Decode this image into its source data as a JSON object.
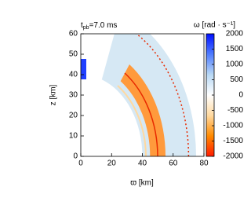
{
  "chart_data": {
    "type": "heatmap",
    "title": {
      "symbol": "t",
      "subscript": "pb",
      "text": "=7.0 ms"
    },
    "x_label": "ϖ [km]",
    "y_label": "z [km]",
    "xlim": [
      0,
      80
    ],
    "xticks": [
      0,
      20,
      40,
      60,
      80
    ],
    "ylim": [
      0,
      60
    ],
    "yticks": [
      0,
      10,
      20,
      30,
      40,
      50,
      60
    ],
    "colorbar": {
      "label": "ω [rad · s⁻¹]",
      "lim": [
        -2000,
        2000
      ],
      "ticks": [
        -2000,
        -1500,
        -1000,
        -500,
        0,
        500,
        1000,
        1500,
        2000
      ],
      "colormap": [
        "#ff1a00",
        "#ff8a00",
        "#ffd9a0",
        "#ffffff",
        "#b8d8f4",
        "#4f7cff",
        "#0010ff"
      ]
    }
  }
}
